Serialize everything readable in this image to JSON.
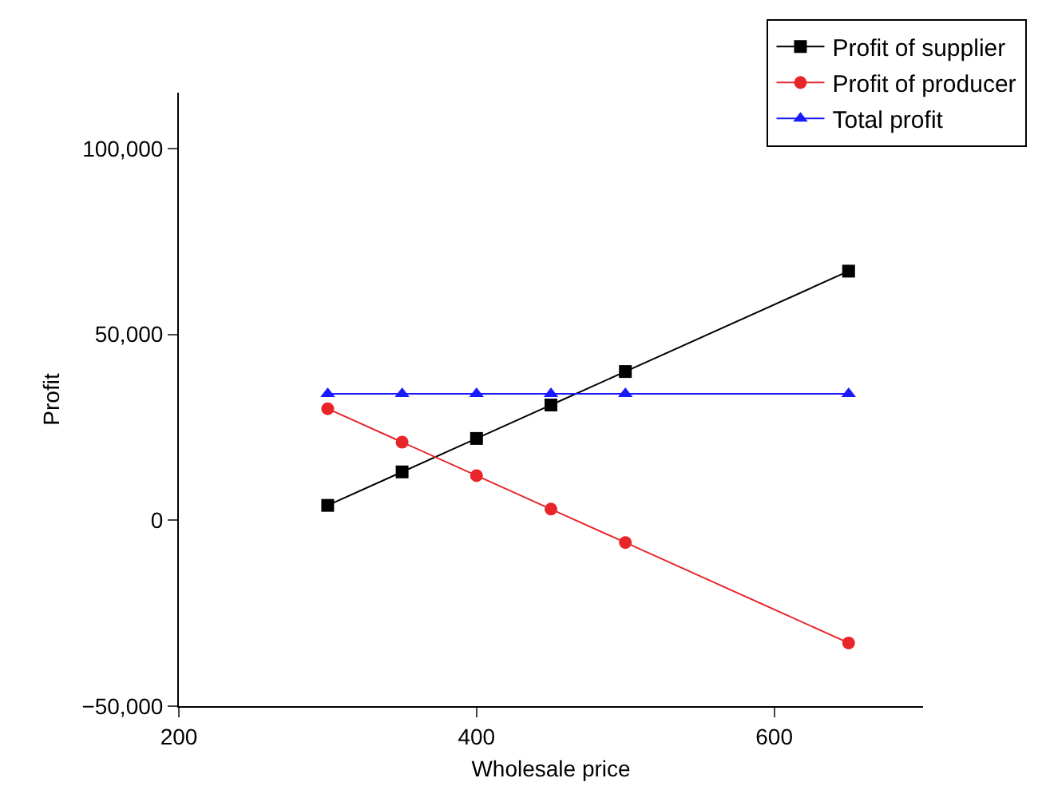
{
  "chart_data": {
    "type": "line",
    "xlabel": "Wholesale price",
    "ylabel": "Profit",
    "x": [
      300,
      350,
      400,
      450,
      500,
      650
    ],
    "series": [
      {
        "name": "Profit of supplier",
        "color": "#000000",
        "marker": "square",
        "values": [
          4000,
          13000,
          22000,
          31000,
          40000,
          67000
        ]
      },
      {
        "name": "Profit of producer",
        "color": "#e8262a",
        "marker": "circle",
        "values": [
          30000,
          21000,
          12000,
          3000,
          -6000,
          -33000
        ]
      },
      {
        "name": "Total profit",
        "color": "#1a1aff",
        "marker": "triangle",
        "values": [
          34000,
          34000,
          34000,
          34000,
          34000,
          34000
        ]
      }
    ],
    "xlim": [
      200,
      700
    ],
    "xticks": [
      200,
      400,
      600
    ],
    "ylim": [
      -50000,
      115000
    ],
    "yticks": [
      {
        "value": -50000,
        "label": "−50,000"
      },
      {
        "value": 0,
        "label": "0"
      },
      {
        "value": 50000,
        "label": "50,000"
      },
      {
        "value": 100000,
        "label": "100,000"
      }
    ],
    "grid": false,
    "legend": "top right",
    "line_style": "solid"
  }
}
